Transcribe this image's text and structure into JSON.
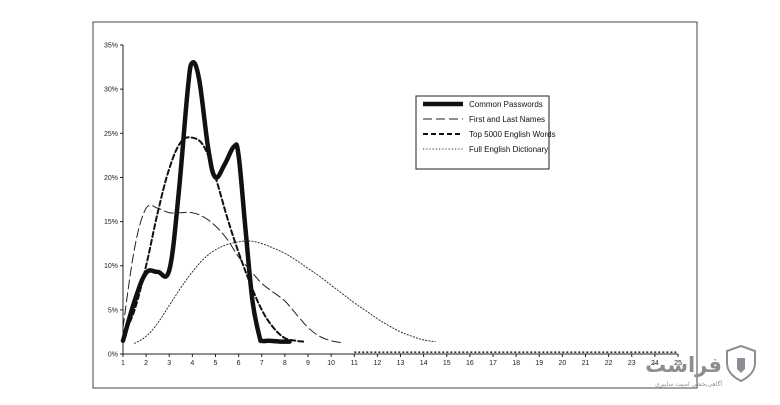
{
  "chart_data": {
    "type": "line",
    "title": "",
    "xlabel": "",
    "ylabel": "",
    "x_ticks": [
      "1",
      "2",
      "3",
      "4",
      "5",
      "6",
      "7",
      "8",
      "9",
      "10",
      "11",
      "12",
      "13",
      "14",
      "15",
      "16",
      "17",
      "18",
      "19",
      "20",
      "21",
      "22",
      "23",
      "24",
      "25"
    ],
    "y_ticks": [
      "0%",
      "5%",
      "10%",
      "15%",
      "20%",
      "25%",
      "30%",
      "35%"
    ],
    "xlim": [
      1,
      25
    ],
    "ylim": [
      0,
      35
    ],
    "grid": false,
    "legend_position": "top-right",
    "series": [
      {
        "name": "Common Passwords",
        "style": "solid-thick",
        "x": [
          1,
          1.5,
          2,
          2.5,
          3,
          3.4,
          3.8,
          4,
          4.3,
          4.7,
          5,
          5.4,
          5.8,
          6,
          6.3,
          6.6,
          6.9,
          7,
          7.3,
          7.8,
          8.2
        ],
        "y": [
          1.5,
          6,
          9.2,
          9.3,
          9.5,
          18,
          30,
          33,
          31,
          23,
          20,
          21.5,
          23.5,
          22.5,
          14,
          6,
          2,
          1.5,
          1.5,
          1.4,
          1.4
        ]
      },
      {
        "name": "First and Last Names",
        "style": "long-dash",
        "x": [
          1,
          1.5,
          2,
          2.5,
          3,
          3.5,
          4,
          4.5,
          5,
          5.5,
          6,
          6.5,
          7,
          7.5,
          8,
          8.5,
          9,
          9.5,
          10,
          10.4
        ],
        "y": [
          3,
          12,
          16.5,
          16.5,
          16,
          16,
          16,
          15.5,
          14.5,
          13,
          11,
          9.5,
          8,
          7,
          6,
          4.5,
          3,
          2,
          1.5,
          1.3
        ]
      },
      {
        "name": "Top 5000 English Words",
        "style": "medium-dash",
        "x": [
          1,
          1.5,
          2,
          2.5,
          3,
          3.5,
          4,
          4.5,
          5,
          5.5,
          6,
          6.5,
          7,
          7.5,
          8,
          8.5,
          8.8
        ],
        "y": [
          2,
          5,
          10,
          16,
          21,
          24,
          24.5,
          23.5,
          20,
          15.5,
          11.5,
          8,
          5,
          3,
          1.8,
          1.5,
          1.4
        ]
      },
      {
        "name": "Full English Dictionary",
        "style": "dotted",
        "x": [
          1.5,
          2,
          2.5,
          3,
          3.5,
          4,
          4.5,
          5,
          5.5,
          6,
          6.5,
          7,
          7.5,
          8,
          8.5,
          9,
          9.5,
          10,
          10.5,
          11,
          11.5,
          12,
          12.5,
          13,
          13.5,
          14,
          14.5
        ],
        "y": [
          1.2,
          2,
          3.5,
          5.5,
          7.5,
          9.3,
          10.8,
          11.8,
          12.4,
          12.7,
          12.8,
          12.5,
          12,
          11.4,
          10.6,
          9.7,
          8.8,
          7.8,
          6.8,
          5.8,
          4.9,
          4,
          3.2,
          2.5,
          2,
          1.6,
          1.4
        ]
      }
    ],
    "baseline_series": {
      "style": "dotted-flat",
      "x": [
        11,
        12,
        13,
        14,
        15,
        16,
        17,
        18,
        19,
        20,
        21,
        22,
        23,
        24,
        25
      ],
      "y": [
        0.2,
        0.2,
        0.2,
        0.2,
        0.2,
        0.2,
        0.2,
        0.2,
        0.2,
        0.2,
        0.2,
        0.2,
        0.2,
        0.2,
        0.2
      ]
    }
  },
  "watermark": {
    "brand": "فراست",
    "tagline": "آگاهی‌بخشی امنیت سایبری"
  }
}
